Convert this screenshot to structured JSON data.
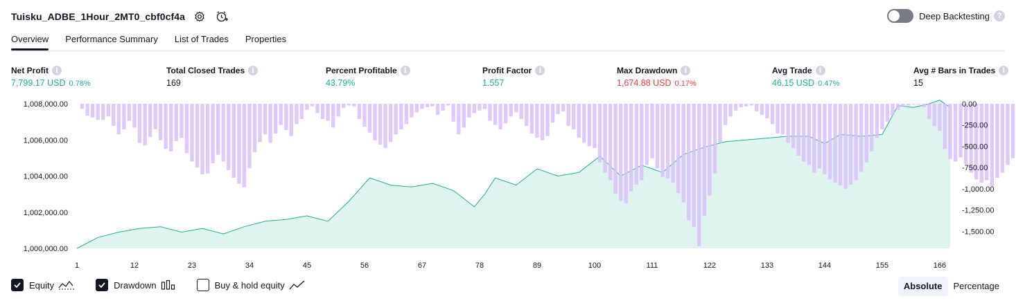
{
  "strategy": {
    "title": "Tuisku_ADBE_1Hour_2MT0_cbf0cf4a"
  },
  "deep_backtesting": {
    "label": "Deep Backtesting",
    "enabled": false
  },
  "tabs": [
    {
      "label": "Overview",
      "active": true
    },
    {
      "label": "Performance Summary",
      "active": false
    },
    {
      "label": "List of Trades",
      "active": false
    },
    {
      "label": "Properties",
      "active": false
    }
  ],
  "metrics": {
    "net_profit": {
      "label": "Net Profit",
      "value": "7,799.17 USD",
      "pct": "0.78%"
    },
    "total_closed_trades": {
      "label": "Total Closed Trades",
      "value": "169"
    },
    "percent_profitable": {
      "label": "Percent Profitable",
      "value": "43.79%"
    },
    "profit_factor": {
      "label": "Profit Factor",
      "value": "1.557"
    },
    "max_drawdown": {
      "label": "Max Drawdown",
      "value": "1,674.88 USD",
      "pct": "0.17%"
    },
    "avg_trade": {
      "label": "Avg Trade",
      "value": "46.15 USD",
      "pct": "0.47%"
    },
    "avg_bars": {
      "label": "Avg # Bars in Trades",
      "value": "15"
    }
  },
  "legend": {
    "equity": {
      "label": "Equity",
      "checked": true
    },
    "drawdown": {
      "label": "Drawdown",
      "checked": true
    },
    "buy_hold": {
      "label": "Buy & hold equity",
      "checked": false
    }
  },
  "modes": {
    "absolute": "Absolute",
    "percentage": "Percentage",
    "selected": "absolute"
  },
  "colors": {
    "equity_line": "#22ab94",
    "equity_fill": "#e0f4ef",
    "drawdown_bar": "#d9bff9",
    "positive": "#22ab94",
    "negative": "#f23645"
  },
  "chart_data": [
    {
      "type": "area",
      "name": "Equity",
      "x": [
        1,
        5,
        9,
        13,
        17,
        21,
        25,
        29,
        33,
        37,
        41,
        45,
        49,
        53,
        57,
        61,
        65,
        69,
        73,
        77,
        79,
        81,
        85,
        89,
        93,
        97,
        101,
        105,
        109,
        113,
        117,
        121,
        125,
        129,
        133,
        137,
        141,
        144,
        147,
        151,
        155,
        158,
        161,
        164,
        166,
        168
      ],
      "y": [
        1000000,
        1000600,
        1000900,
        1001100,
        1001200,
        1000900,
        1001100,
        1000800,
        1001200,
        1001500,
        1001600,
        1001800,
        1001500,
        1002600,
        1003900,
        1003500,
        1003400,
        1003600,
        1003200,
        1002300,
        1003000,
        1003900,
        1003500,
        1004400,
        1004000,
        1004200,
        1005100,
        1004000,
        1004600,
        1004200,
        1005200,
        1005600,
        1005900,
        1006000,
        1006100,
        1006200,
        1006200,
        1005800,
        1006300,
        1006200,
        1006300,
        1007900,
        1007800,
        1008000,
        1008200,
        1007800
      ],
      "x_ticks": [
        "1",
        "12",
        "23",
        "34",
        "45",
        "56",
        "67",
        "78",
        "89",
        "100",
        "111",
        "122",
        "133",
        "144",
        "155",
        "166"
      ],
      "y_ticks": [
        "1,000,000.00",
        "1,002,000.00",
        "1,004,000.00",
        "1,006,000.00",
        "1,008,000.00"
      ],
      "ylim": [
        1000000,
        1008000
      ]
    },
    {
      "type": "bar",
      "name": "Drawdown",
      "x_start": 1,
      "values": [
        0,
        -60,
        -140,
        -160,
        -190,
        -190,
        -150,
        -260,
        -360,
        -300,
        -200,
        -280,
        -460,
        -490,
        -390,
        -300,
        -430,
        -530,
        -560,
        -440,
        -400,
        -580,
        -680,
        -750,
        -830,
        -820,
        -700,
        -600,
        -680,
        -780,
        -870,
        -940,
        -980,
        -760,
        -570,
        -450,
        -360,
        -460,
        -350,
        -250,
        -310,
        -380,
        -240,
        -180,
        -70,
        -30,
        -110,
        -180,
        -200,
        -280,
        -150,
        -50,
        -20,
        -30,
        -180,
        -270,
        -340,
        -430,
        -480,
        -520,
        -450,
        -360,
        -300,
        -240,
        -160,
        -100,
        -60,
        -40,
        -30,
        -130,
        -80,
        -20,
        -210,
        -360,
        -280,
        -160,
        -110,
        -80,
        -60,
        -200,
        -250,
        -300,
        -230,
        -150,
        -100,
        -180,
        -260,
        -350,
        -400,
        -430,
        -380,
        -220,
        -120,
        -90,
        -260,
        -300,
        -400,
        -460,
        -500,
        -520,
        -690,
        -810,
        -900,
        -1060,
        -1140,
        -1170,
        -1030,
        -950,
        -900,
        -720,
        -640,
        -760,
        -860,
        -880,
        -930,
        -1050,
        -1160,
        -1370,
        -1450,
        -1675,
        -1320,
        -1080,
        -820,
        -460,
        -250,
        -150,
        -80,
        -40,
        -30,
        -20,
        -90,
        -130,
        -170,
        -240,
        -350,
        -360,
        -460,
        -520,
        -610,
        -680,
        -720,
        -810,
        -760,
        -830,
        -890,
        -930,
        -960,
        -1000,
        -950,
        -900,
        -800,
        -690,
        -560,
        -400,
        -300,
        -210,
        -140,
        -70,
        -30,
        -20,
        -10,
        -10,
        -40,
        -180,
        -260,
        -320,
        -530,
        -650,
        -680,
        -630,
        -710,
        -810,
        -890,
        -930,
        -900,
        -970,
        -870,
        -810,
        -720,
        -640,
        -520,
        -400,
        -240,
        -120,
        -40,
        -270,
        -690
      ],
      "y_ticks": [
        "0.00",
        "-250.00",
        "-500.00",
        "-750.00",
        "-1,000.00",
        "-1,250.00",
        "-1,500.00"
      ],
      "ylim": [
        -1700,
        0
      ]
    }
  ]
}
